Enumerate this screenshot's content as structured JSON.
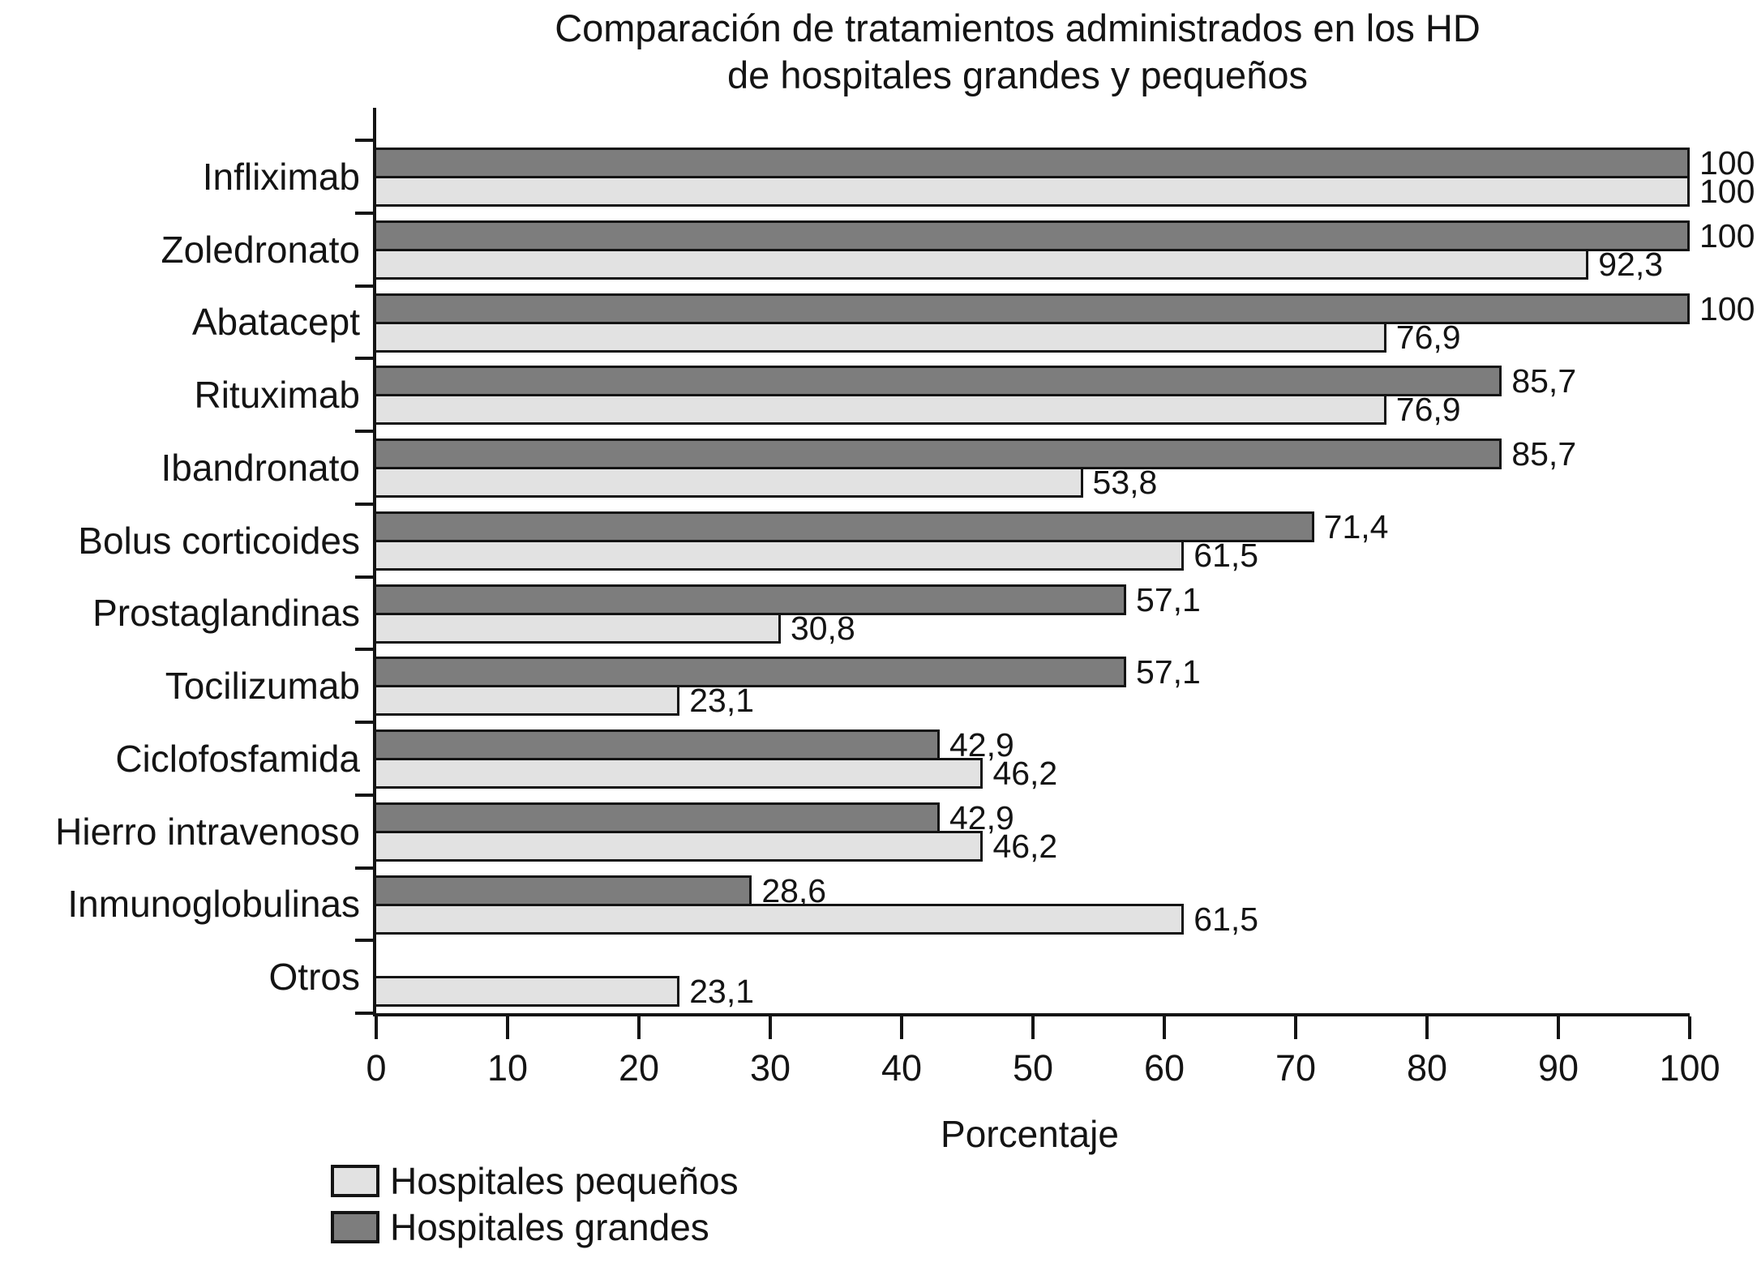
{
  "chart_data": {
    "type": "bar",
    "orientation": "horizontal",
    "title": "Comparación de tratamientos administrados en los HD de hospitales grandes y pequeños",
    "title_lines": [
      "Comparación de tratamientos administrados en los HD",
      "de hospitales grandes y pequeños"
    ],
    "xlabel": "Porcentaje",
    "xlim": [
      0,
      100
    ],
    "xticks": [
      0,
      10,
      20,
      30,
      40,
      50,
      60,
      70,
      80,
      90,
      100
    ],
    "grid": false,
    "legend_position": "bottom-left",
    "categories": [
      "Infliximab",
      "Zoledronato",
      "Abatacept",
      "Rituximab",
      "Ibandronato",
      "Bolus corticoides",
      "Prostaglandinas",
      "Tocilizumab",
      "Ciclofosfamida",
      "Hierro intravenoso",
      "Inmunoglobulinas",
      "Otros"
    ],
    "series": [
      {
        "name": "Hospitales grandes",
        "color": "#7d7d7d",
        "values": [
          100,
          100,
          100,
          85.7,
          85.7,
          71.4,
          57.1,
          57.1,
          42.9,
          42.9,
          28.6,
          null
        ],
        "labels": [
          "100",
          "100",
          "100",
          "85,7",
          "85,7",
          "71,4",
          "57,1",
          "57,1",
          "42,9",
          "42,9",
          "28,6",
          ""
        ]
      },
      {
        "name": "Hospitales pequeños",
        "color": "#e2e2e2",
        "values": [
          100,
          92.3,
          76.9,
          76.9,
          53.8,
          61.5,
          30.8,
          23.1,
          46.2,
          46.2,
          61.5,
          23.1
        ],
        "labels": [
          "100",
          "92,3",
          "76,9",
          "76,9",
          "53,8",
          "61,5",
          "30,8",
          "23,1",
          "46,2",
          "46,2",
          "61,5",
          "23,1"
        ]
      }
    ],
    "legend": [
      {
        "label": "Hospitales pequeños",
        "color": "#e2e2e2"
      },
      {
        "label": "Hospitales grandes",
        "color": "#7d7d7d"
      }
    ],
    "axis_color": "#141414"
  }
}
